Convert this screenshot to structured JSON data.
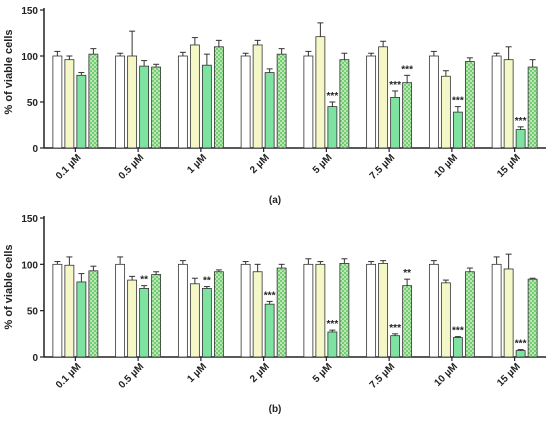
{
  "chart_data": [
    {
      "type": "bar",
      "panel_label": "(a)",
      "ylabel": "% of viable cells",
      "xlabel": "",
      "ylim": [
        0,
        150
      ],
      "yticks": [
        0,
        50,
        100,
        150
      ],
      "categories": [
        "0.1 µM",
        "0.5 µM",
        "1 µM",
        "2 µM",
        "5 µM",
        "7.5 µM",
        "10 µM",
        "15 µM"
      ],
      "grid": false,
      "legend": "none",
      "series": [
        {
          "values": [
            100,
            100,
            100,
            100,
            100,
            100,
            100,
            100
          ],
          "errors": [
            5,
            3,
            4,
            3,
            5,
            3,
            5,
            3
          ],
          "color": "#ffffff",
          "pattern": "solid"
        },
        {
          "values": [
            96,
            100,
            112,
            112,
            121,
            110,
            78,
            96
          ],
          "errors": [
            4,
            27,
            8,
            5,
            15,
            6,
            6,
            14
          ],
          "color": "#f5f7c6",
          "pattern": "solid"
        },
        {
          "values": [
            79,
            89,
            90,
            82,
            45,
            55,
            39,
            20
          ],
          "errors": [
            3,
            6,
            12,
            4,
            5,
            7,
            6,
            3
          ],
          "color": "#7ee3a0",
          "pattern": "solid"
        },
        {
          "values": [
            102,
            88,
            110,
            102,
            96,
            71,
            94,
            88
          ],
          "errors": [
            6,
            3,
            7,
            6,
            7,
            8,
            4,
            8
          ],
          "color": "#bfe5b5",
          "pattern": "checker"
        }
      ],
      "annotations": [
        {
          "category": "5 µM",
          "series": 2,
          "text": "***"
        },
        {
          "category": "7.5 µM",
          "series": 2,
          "text": "***"
        },
        {
          "category": "7.5 µM",
          "series": 3,
          "text": "***"
        },
        {
          "category": "10 µM",
          "series": 2,
          "text": "***"
        },
        {
          "category": "15 µM",
          "series": 2,
          "text": "***"
        }
      ]
    },
    {
      "type": "bar",
      "panel_label": "(b)",
      "ylabel": "% of viable cells",
      "xlabel": "",
      "ylim": [
        0,
        150
      ],
      "yticks": [
        0,
        50,
        100,
        150
      ],
      "categories": [
        "0.1 µM",
        "0.5 µM",
        "1 µM",
        "2 µM",
        "5 µM",
        "7.5 µM",
        "10 µM",
        "15 µM"
      ],
      "grid": false,
      "legend": "none",
      "series": [
        {
          "values": [
            100,
            100,
            100,
            100,
            100,
            100,
            100,
            100
          ],
          "errors": [
            3,
            8,
            4,
            3,
            6,
            3,
            4,
            8
          ],
          "color": "#ffffff",
          "pattern": "solid"
        },
        {
          "values": [
            99,
            83,
            79,
            92,
            100,
            101,
            80,
            95
          ],
          "errors": [
            9,
            4,
            6,
            8,
            3,
            3,
            3,
            16
          ],
          "color": "#f5f7c6",
          "pattern": "solid"
        },
        {
          "values": [
            81,
            74,
            74,
            57,
            27,
            23,
            21,
            7
          ],
          "errors": [
            9,
            3,
            2,
            3,
            2,
            2,
            1,
            1
          ],
          "color": "#7ee3a0",
          "pattern": "solid"
        },
        {
          "values": [
            93,
            89,
            92,
            96,
            101,
            77,
            92,
            84
          ],
          "errors": [
            5,
            3,
            2,
            4,
            5,
            7,
            4,
            1
          ],
          "color": "#bfe5b5",
          "pattern": "checker"
        }
      ],
      "annotations": [
        {
          "category": "0.5 µM",
          "series": 2,
          "text": "**"
        },
        {
          "category": "1 µM",
          "series": 2,
          "text": "**"
        },
        {
          "category": "2 µM",
          "series": 2,
          "text": "***"
        },
        {
          "category": "5 µM",
          "series": 2,
          "text": "***"
        },
        {
          "category": "7.5 µM",
          "series": 2,
          "text": "***"
        },
        {
          "category": "7.5 µM",
          "series": 3,
          "text": "**"
        },
        {
          "category": "10 µM",
          "series": 2,
          "text": "***"
        },
        {
          "category": "15 µM",
          "series": 2,
          "text": "***"
        }
      ]
    }
  ]
}
